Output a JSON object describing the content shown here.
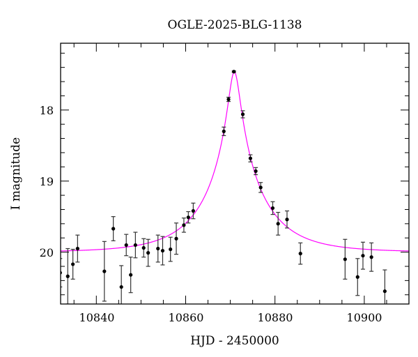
{
  "chart_data": {
    "type": "scatter",
    "title": "OGLE-2025-BLG-1138",
    "xlabel": "HJD - 2450000",
    "ylabel": "I magnitude",
    "xlim": [
      10832,
      10910
    ],
    "ylim": [
      17.06,
      20.73
    ],
    "y_inverted": true,
    "x_major_ticks": [
      10840,
      10860,
      10880,
      10900
    ],
    "x_tick_labels": [
      "10840",
      "10860",
      "10880",
      "10900"
    ],
    "x_minor_step": 5,
    "y_major_ticks": [
      18,
      19,
      20
    ],
    "y_tick_labels": [
      "18",
      "19",
      "20"
    ],
    "y_minor_step": 0.2,
    "grid": false,
    "colors": {
      "points": "#000000",
      "errorbars": "#333333",
      "model": "#ff00ff"
    },
    "series": [
      {
        "x": [
          10831.9,
          10833.6,
          10834.75,
          10835.8,
          10841.8,
          10843.8,
          10845.6,
          10846.7,
          10847.7,
          10848.75,
          10850.6,
          10851.6,
          10853.8,
          10854.85,
          10856.6,
          10857.9,
          10859.6,
          10860.6,
          10861.7,
          10868.55,
          10869.6,
          10870.8,
          10872.8,
          10874.5,
          10875.7,
          10876.8,
          10879.5,
          10880.7,
          10882.7,
          10885.7,
          10895.7,
          10898.5,
          10899.7,
          10901.6,
          10904.6
        ],
        "y": [
          20.29,
          20.34,
          20.17,
          19.95,
          20.27,
          19.67,
          20.49,
          19.9,
          20.32,
          19.9,
          19.94,
          20.01,
          19.95,
          19.98,
          19.96,
          19.81,
          19.62,
          19.51,
          19.42,
          18.3,
          17.85,
          17.46,
          18.06,
          18.68,
          18.86,
          19.09,
          19.38,
          19.6,
          19.54,
          20.02,
          20.1,
          20.35,
          20.05,
          20.07,
          20.55
        ],
        "err": [
          0.2,
          0.39,
          0.21,
          0.19,
          0.42,
          0.17,
          0.3,
          0.15,
          0.25,
          0.18,
          0.13,
          0.19,
          0.19,
          0.2,
          0.17,
          0.22,
          0.1,
          0.08,
          0.11,
          0.06,
          0.03,
          0.01,
          0.05,
          0.05,
          0.05,
          0.07,
          0.09,
          0.16,
          0.12,
          0.15,
          0.28,
          0.26,
          0.19,
          0.2,
          0.3
        ]
      }
    ],
    "model": {
      "type": "point-lens",
      "t0": 10870.9,
      "u0": 0.097,
      "tE": 12.6,
      "baseline_mag": 20.0
    }
  }
}
